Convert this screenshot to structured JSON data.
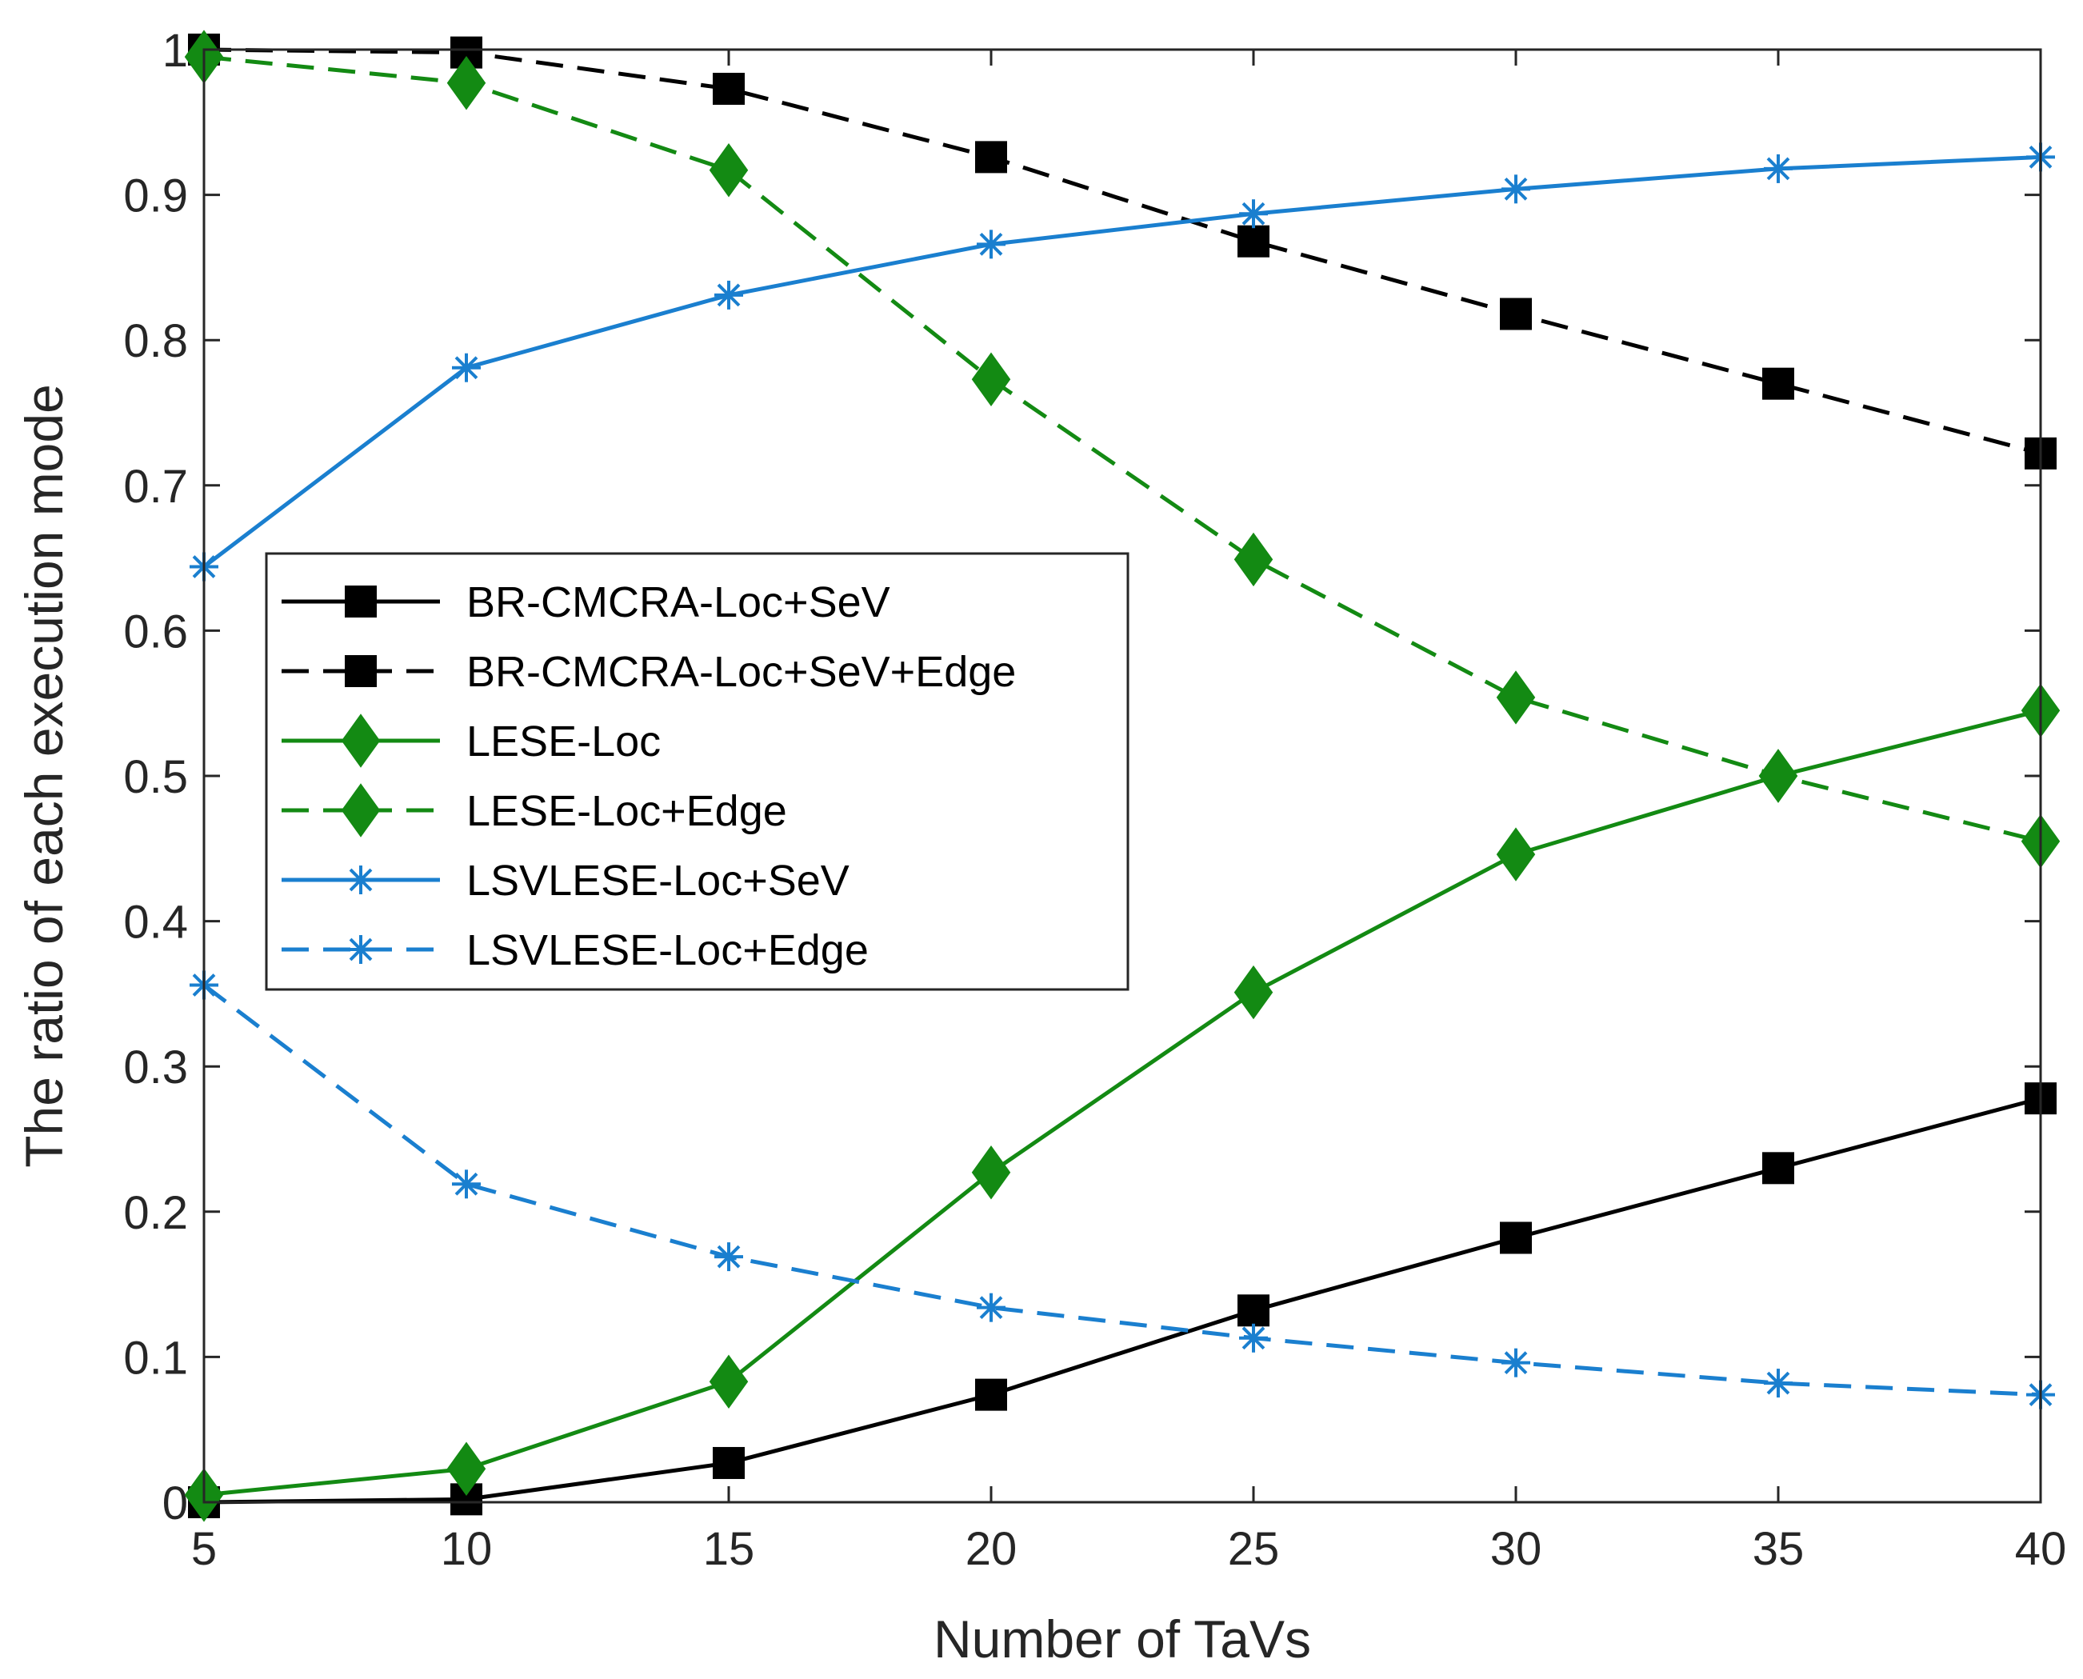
{
  "chart_data": {
    "type": "line",
    "title": "",
    "xlabel": "Number of TaVs",
    "ylabel": "The ratio of each execution mode",
    "xlim": [
      5,
      40
    ],
    "ylim": [
      0,
      1
    ],
    "xticks": [
      5,
      10,
      15,
      20,
      25,
      30,
      35,
      40
    ],
    "yticks": [
      0,
      0.1,
      0.2,
      0.3,
      0.4,
      0.5,
      0.6,
      0.7,
      0.8,
      0.9,
      1
    ],
    "x": [
      5,
      10,
      15,
      20,
      25,
      30,
      35,
      40
    ],
    "legend_position": "center-left",
    "series": [
      {
        "name": "BR-CMCRA-Loc+SeV",
        "color": "#000000",
        "line": "solid",
        "marker": "square",
        "values": [
          0.0,
          0.002,
          0.027,
          0.074,
          0.132,
          0.182,
          0.23,
          0.278
        ]
      },
      {
        "name": "BR-CMCRA-Loc+SeV+Edge",
        "color": "#000000",
        "line": "dashed",
        "marker": "square",
        "values": [
          1.0,
          0.998,
          0.973,
          0.926,
          0.868,
          0.818,
          0.77,
          0.722
        ]
      },
      {
        "name": "LESE-Loc",
        "color": "#138a13",
        "line": "solid",
        "marker": "diamond",
        "values": [
          0.005,
          0.023,
          0.083,
          0.227,
          0.351,
          0.446,
          0.5,
          0.545
        ]
      },
      {
        "name": "LESE-Loc+Edge",
        "color": "#138a13",
        "line": "dashed",
        "marker": "diamond",
        "values": [
          0.995,
          0.977,
          0.917,
          0.773,
          0.649,
          0.554,
          0.5,
          0.455
        ]
      },
      {
        "name": "LSVLESE-Loc+SeV",
        "color": "#1a7fcf",
        "line": "solid",
        "marker": "asterisk",
        "values": [
          0.644,
          0.781,
          0.831,
          0.866,
          0.887,
          0.904,
          0.918,
          0.926
        ]
      },
      {
        "name": "LSVLESE-Loc+Edge",
        "color": "#1a7fcf",
        "line": "dashed",
        "marker": "asterisk",
        "values": [
          0.356,
          0.219,
          0.169,
          0.134,
          0.113,
          0.096,
          0.082,
          0.074
        ]
      }
    ]
  }
}
